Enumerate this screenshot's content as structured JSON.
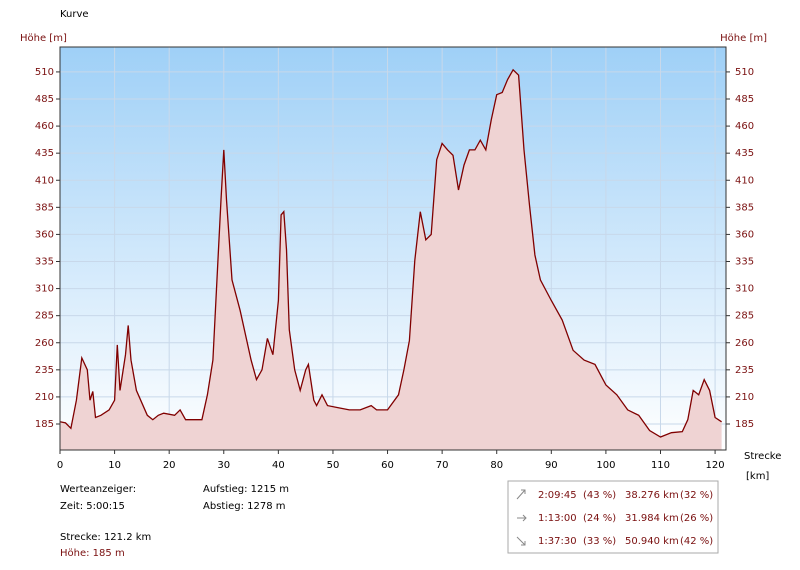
{
  "chart_data": {
    "type": "area",
    "title": "Kurve",
    "y_label": "Höhe [m]",
    "y2_label": "Höhe [m]",
    "x_label": "Strecke",
    "x_unit": "[km]",
    "color": "#800000",
    "fill": "#efd3d3",
    "x": [
      0,
      1,
      2,
      3,
      4,
      5,
      5.5,
      6,
      6.5,
      7.5,
      9,
      10,
      10.5,
      11,
      12,
      12.5,
      13,
      14,
      16,
      17,
      18,
      19,
      21,
      22,
      23,
      26,
      27,
      28,
      29.5,
      30,
      30.5,
      31.5,
      33,
      35,
      36,
      37,
      38,
      39,
      40,
      40.5,
      41,
      41.5,
      42,
      43,
      44,
      45,
      45.5,
      46.5,
      47,
      48,
      49,
      51,
      53,
      55,
      57,
      58,
      60,
      62,
      63,
      64,
      65,
      66,
      67,
      68,
      69,
      70,
      71,
      72,
      73,
      74,
      75,
      76,
      77,
      78,
      79,
      80,
      81,
      82,
      83,
      84,
      85,
      86,
      87,
      88,
      90,
      92,
      94,
      96,
      98,
      100,
      102,
      104,
      106,
      108,
      110,
      112,
      114,
      115,
      116,
      117,
      118,
      119,
      120,
      121.2
    ],
    "values": [
      187,
      186,
      181,
      207,
      246,
      235,
      207,
      215,
      191,
      193,
      198,
      207,
      258,
      216,
      249,
      276,
      244,
      216,
      193,
      189,
      193,
      195,
      193,
      198,
      189,
      189,
      212,
      244,
      392,
      438,
      392,
      318,
      290,
      244,
      226,
      235,
      264,
      249,
      299,
      378,
      381,
      346,
      272,
      235,
      216,
      235,
      240,
      207,
      202,
      212,
      202,
      200,
      198,
      198,
      202,
      198,
      198,
      212,
      235,
      262,
      336,
      381,
      355,
      360,
      429,
      444,
      438,
      433,
      401,
      424,
      438,
      438,
      447,
      438,
      466,
      489,
      491,
      503,
      512,
      507,
      438,
      387,
      341,
      318,
      299,
      281,
      253,
      244,
      240,
      221,
      212,
      198,
      193,
      179,
      173,
      177,
      178,
      189,
      216,
      212,
      226,
      216,
      191,
      187
    ],
    "xlim": [
      0,
      122
    ],
    "ylim": [
      161,
      533
    ],
    "xticks": [
      0,
      10,
      20,
      30,
      40,
      50,
      60,
      70,
      80,
      90,
      100,
      110,
      120
    ],
    "yticks": [
      185,
      210,
      235,
      260,
      285,
      310,
      335,
      360,
      385,
      410,
      435,
      460,
      485,
      510
    ],
    "grid": true
  },
  "info": {
    "heading": "Werteanzeiger:",
    "time": "Zeit: 5:00:15",
    "ascent": "Aufstieg: 1215 m",
    "descent": "Abstieg: 1278 m",
    "distance": "Strecke: 121.2 km",
    "height": "Höhe: 185 m"
  },
  "table": {
    "rows": [
      [
        "2:09:45",
        "(43 %)",
        "38.276 km",
        "(32 %)"
      ],
      [
        "1:13:00",
        "(24 %)",
        "31.984 km",
        "(26 %)"
      ],
      [
        "1:37:30",
        "(33 %)",
        "50.940 km",
        "(42 %)"
      ]
    ]
  }
}
